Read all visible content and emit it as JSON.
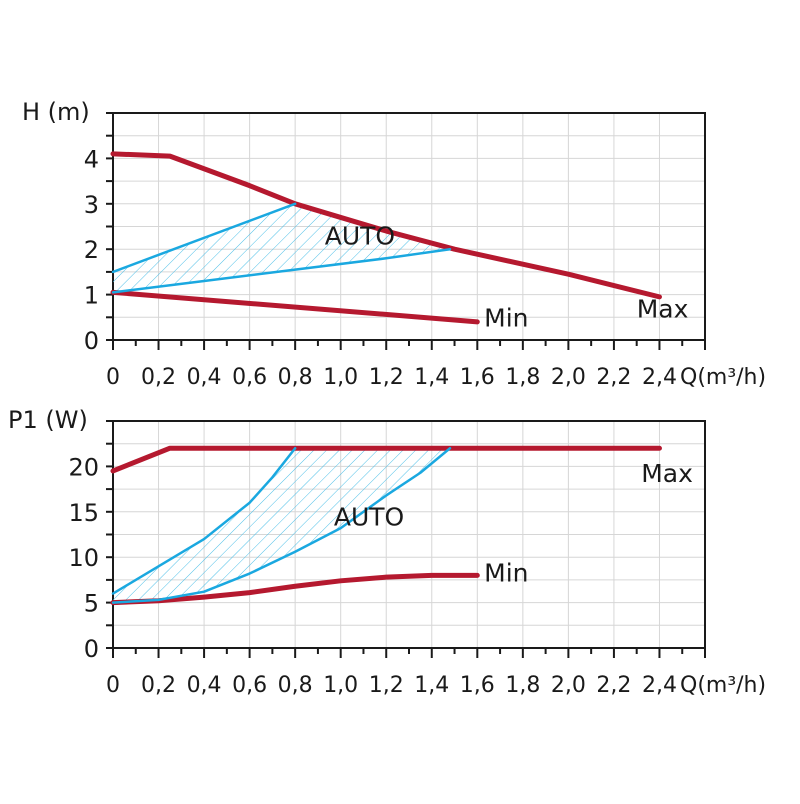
{
  "colors": {
    "max_min": "#b5192f",
    "auto": "#1aa8e0",
    "hatch": "#4fc0e8",
    "grid": "#d6d6d6",
    "axis": "#1a1a1a"
  },
  "chart_data": [
    {
      "type": "line",
      "title": "",
      "ylabel": "H (m)",
      "xlabel": "Q(m³/h)",
      "xlim": [
        0,
        2.6
      ],
      "ylim": [
        0,
        5
      ],
      "grid": true,
      "x_ticks": [
        0,
        0.2,
        0.4,
        0.6,
        0.8,
        1.0,
        1.2,
        1.4,
        1.6,
        1.8,
        2.0,
        2.2,
        2.4
      ],
      "x_tick_labels": [
        "0",
        "0,2",
        "0,4",
        "0,6",
        "0,8",
        "1,0",
        "1,2",
        "1,4",
        "1,6",
        "1,8",
        "2,0",
        "2,2",
        "2,4"
      ],
      "y_ticks": [
        0,
        1,
        2,
        3,
        4
      ],
      "y_tick_labels": [
        "0",
        "1",
        "2",
        "3",
        "4"
      ],
      "series": [
        {
          "name": "Max",
          "role": "max",
          "x": [
            0,
            0.25,
            0.6,
            0.8,
            1.0,
            1.2,
            1.5,
            2.0,
            2.4
          ],
          "y": [
            4.1,
            4.05,
            3.4,
            3.0,
            2.7,
            2.4,
            2.0,
            1.45,
            0.95
          ]
        },
        {
          "name": "Min",
          "role": "min",
          "x": [
            0,
            1.6
          ],
          "y": [
            1.05,
            0.4
          ]
        },
        {
          "name": "AUTO upper",
          "role": "auto",
          "x": [
            0,
            0.8
          ],
          "y": [
            1.5,
            3.0
          ]
        },
        {
          "name": "AUTO lower",
          "role": "auto",
          "x": [
            0,
            0.4,
            0.8,
            1.2,
            1.48
          ],
          "y": [
            1.05,
            1.3,
            1.55,
            1.8,
            2.0
          ]
        }
      ],
      "annotations": [
        {
          "text": "AUTO",
          "x": 0.93,
          "y": 2.1
        },
        {
          "text": "Min",
          "x": 1.63,
          "y": 0.3
        },
        {
          "text": "Max",
          "x": 2.3,
          "y": 0.5
        }
      ]
    },
    {
      "type": "line",
      "title": "",
      "ylabel": "P1 (W)",
      "xlabel": "Q(m³/h)",
      "xlim": [
        0,
        2.6
      ],
      "ylim": [
        0,
        25
      ],
      "grid": true,
      "x_ticks": [
        0,
        0.2,
        0.4,
        0.6,
        0.8,
        1.0,
        1.2,
        1.4,
        1.6,
        1.8,
        2.0,
        2.2,
        2.4
      ],
      "x_tick_labels": [
        "0",
        "0,2",
        "0,4",
        "0,6",
        "0,8",
        "1,0",
        "1,2",
        "1,4",
        "1,6",
        "1,8",
        "2,0",
        "2,2",
        "2,4"
      ],
      "y_ticks": [
        0,
        5,
        10,
        15,
        20
      ],
      "y_tick_labels": [
        "0",
        "5",
        "10",
        "15",
        "20"
      ],
      "series": [
        {
          "name": "Max",
          "role": "max",
          "x": [
            0,
            0.25,
            2.4
          ],
          "y": [
            19.5,
            22,
            22
          ]
        },
        {
          "name": "Min",
          "role": "min",
          "x": [
            0,
            0.2,
            0.4,
            0.6,
            0.8,
            1.0,
            1.2,
            1.4,
            1.6
          ],
          "y": [
            5,
            5.2,
            5.6,
            6.1,
            6.8,
            7.4,
            7.8,
            8.0,
            8.0
          ]
        },
        {
          "name": "AUTO upper",
          "role": "auto",
          "x": [
            0,
            0.2,
            0.4,
            0.6,
            0.7,
            0.8
          ],
          "y": [
            6,
            9,
            12,
            16,
            18.8,
            22
          ]
        },
        {
          "name": "AUTO lower",
          "role": "auto",
          "x": [
            0,
            0.2,
            0.4,
            0.6,
            0.8,
            1.0,
            1.2,
            1.35,
            1.48
          ],
          "y": [
            5,
            5.3,
            6.2,
            8.2,
            10.6,
            13.2,
            16.8,
            19.3,
            22
          ]
        }
      ],
      "annotations": [
        {
          "text": "AUTO",
          "x": 0.97,
          "y": 13.5
        },
        {
          "text": "Min",
          "x": 1.63,
          "y": 7.3
        },
        {
          "text": "Max",
          "x": 2.32,
          "y": 18.3
        }
      ]
    }
  ]
}
